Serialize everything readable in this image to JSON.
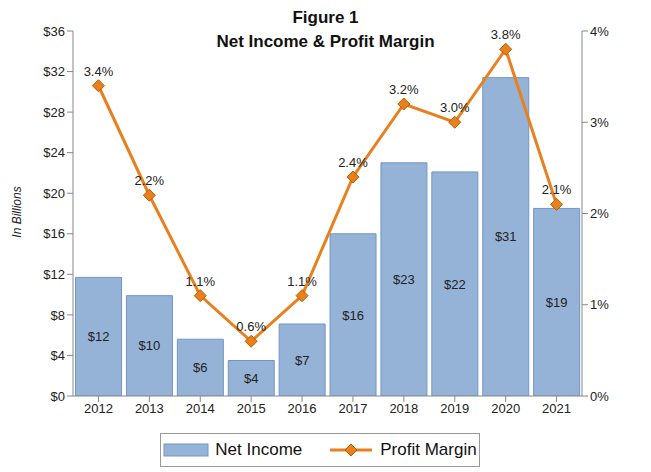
{
  "chart_data": {
    "type": "bar",
    "title": "Figure 1",
    "subtitle": "Net Income & Profit Margin",
    "y_label": "In Billions",
    "categories": [
      "2012",
      "2013",
      "2014",
      "2015",
      "2016",
      "2017",
      "2018",
      "2019",
      "2020",
      "2021"
    ],
    "series": [
      {
        "name": "Net Income",
        "type": "bar",
        "color": "#95b3d7",
        "data_labels": true,
        "values": [
          11.7,
          9.9,
          5.6,
          3.5,
          7.1,
          16.0,
          23.0,
          22.1,
          31.4,
          18.5
        ],
        "value_labels": [
          "$12",
          "$10",
          "$6",
          "$4",
          "$7",
          "$16",
          "$23",
          "$22",
          "$31",
          "$19"
        ]
      },
      {
        "name": "Profit Margin",
        "type": "line",
        "axis": "y2",
        "color": "#e8801e",
        "marker": "diamond",
        "data_labels": true,
        "values": [
          3.4,
          2.2,
          1.1,
          0.6,
          1.1,
          2.4,
          3.2,
          3.0,
          3.8,
          2.1
        ],
        "value_labels": [
          "3.4%",
          "2.2%",
          "1.1%",
          "0.6%",
          "1.1%",
          "2.4%",
          "3.2%",
          "3.0%",
          "3.8%",
          "2.1%"
        ]
      }
    ],
    "ylim": [
      0,
      36
    ],
    "yticks": [
      {
        "value": 0,
        "label": "$0"
      },
      {
        "value": 4,
        "label": "$4"
      },
      {
        "value": 8,
        "label": "$8"
      },
      {
        "value": 12,
        "label": "$12"
      },
      {
        "value": 16,
        "label": "$16"
      },
      {
        "value": 20,
        "label": "$20"
      },
      {
        "value": 24,
        "label": "$24"
      },
      {
        "value": 28,
        "label": "$28"
      },
      {
        "value": 32,
        "label": "$32"
      },
      {
        "value": 36,
        "label": "$36"
      }
    ],
    "y2lim": [
      0,
      4
    ],
    "y2ticks": [
      {
        "value": 0,
        "label": "0%"
      },
      {
        "value": 1,
        "label": "1%"
      },
      {
        "value": 2,
        "label": "2%"
      },
      {
        "value": 3,
        "label": "3%"
      },
      {
        "value": 4,
        "label": "4%"
      }
    ],
    "grid": false,
    "legend": "bottom"
  }
}
